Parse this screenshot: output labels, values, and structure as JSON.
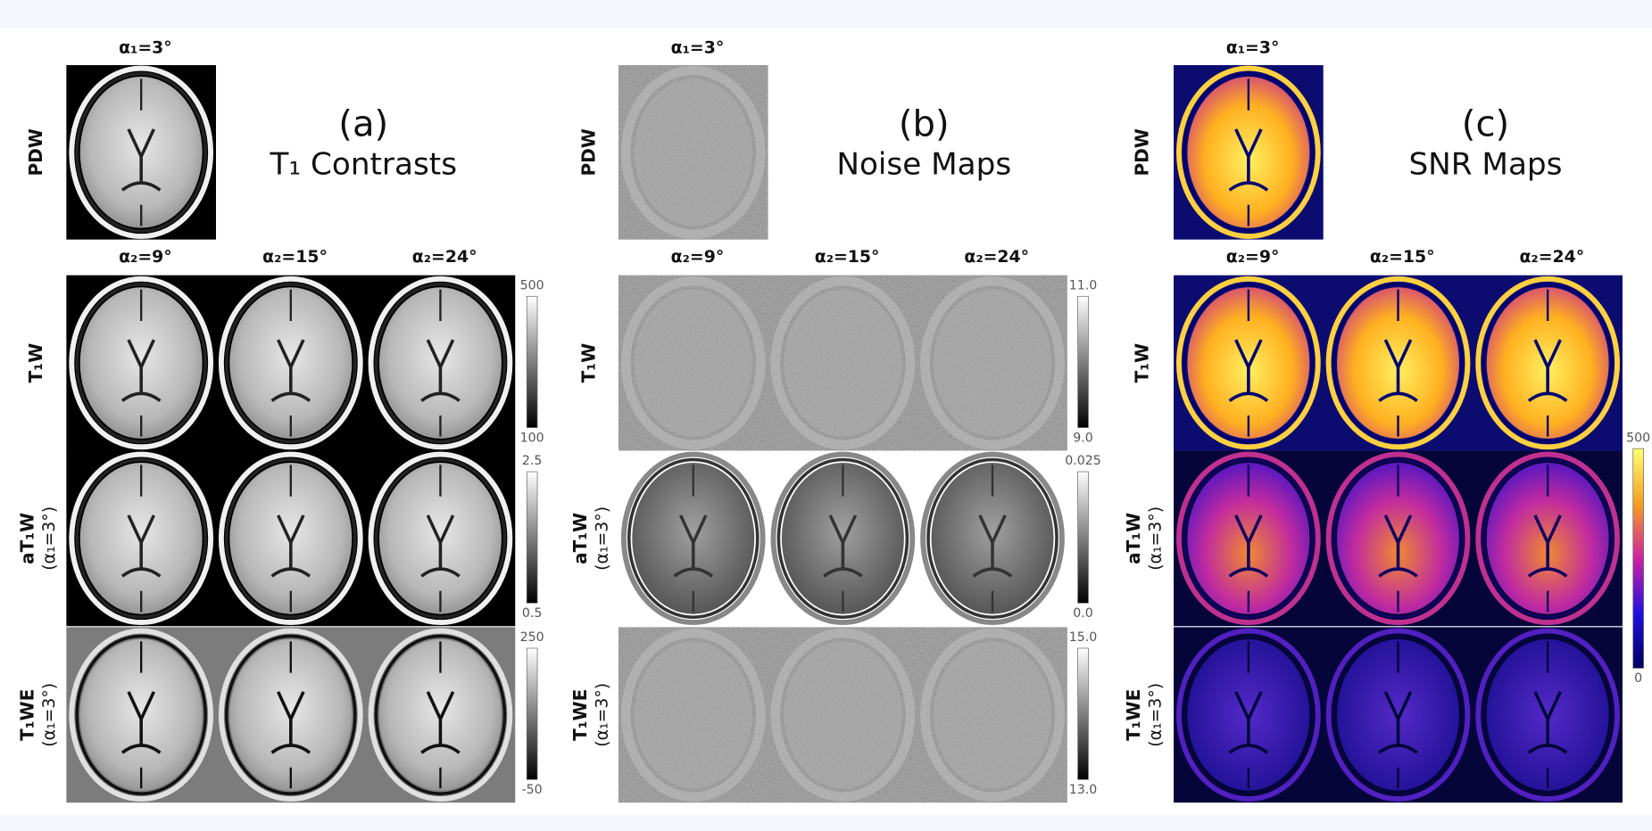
{
  "panels": [
    {
      "letter": "(a)",
      "title": "T₁ Contrasts",
      "top_label": "α₁=3°",
      "top_row_label": "PDW",
      "column_labels": [
        "α₂=9°",
        "α₂=15°",
        "α₂=24°"
      ],
      "rows": [
        {
          "label": "T₁W"
        },
        {
          "label": "aT₁W",
          "sublabel": "(α₁=3°)"
        },
        {
          "label": "T₁WE",
          "sublabel": "(α₁=3°)"
        }
      ],
      "colorbars": [
        {
          "max": "500",
          "min": "100"
        },
        {
          "max": "2.5",
          "min": "0.5"
        },
        {
          "max": "250",
          "min": "-50"
        }
      ]
    },
    {
      "letter": "(b)",
      "title": "Noise Maps",
      "top_label": "α₁=3°",
      "top_row_label": "PDW",
      "column_labels": [
        "α₂=9°",
        "α₂=15°",
        "α₂=24°"
      ],
      "rows": [
        {
          "label": "T₁W"
        },
        {
          "label": "aT₁W",
          "sublabel": "(α₁=3°)"
        },
        {
          "label": "T₁WE",
          "sublabel": "(α₁=3°)"
        }
      ],
      "colorbars": [
        {
          "max": "11.0",
          "min": "9.0"
        },
        {
          "max": "0.025",
          "min": "0.0"
        },
        {
          "max": "15.0",
          "min": "13.0"
        }
      ]
    },
    {
      "letter": "(c)",
      "title": "SNR Maps",
      "top_label": "α₁=3°",
      "top_row_label": "PDW",
      "column_labels": [
        "α₂=9°",
        "α₂=15°",
        "α₂=24°"
      ],
      "rows": [
        {
          "label": "T₁W"
        },
        {
          "label": "aT₁W",
          "sublabel": "(α₁=3°)"
        },
        {
          "label": "T₁WE",
          "sublabel": "(α₁=3°)"
        }
      ],
      "colorbars": [
        {
          "max": "500",
          "min": "0"
        }
      ]
    }
  ]
}
